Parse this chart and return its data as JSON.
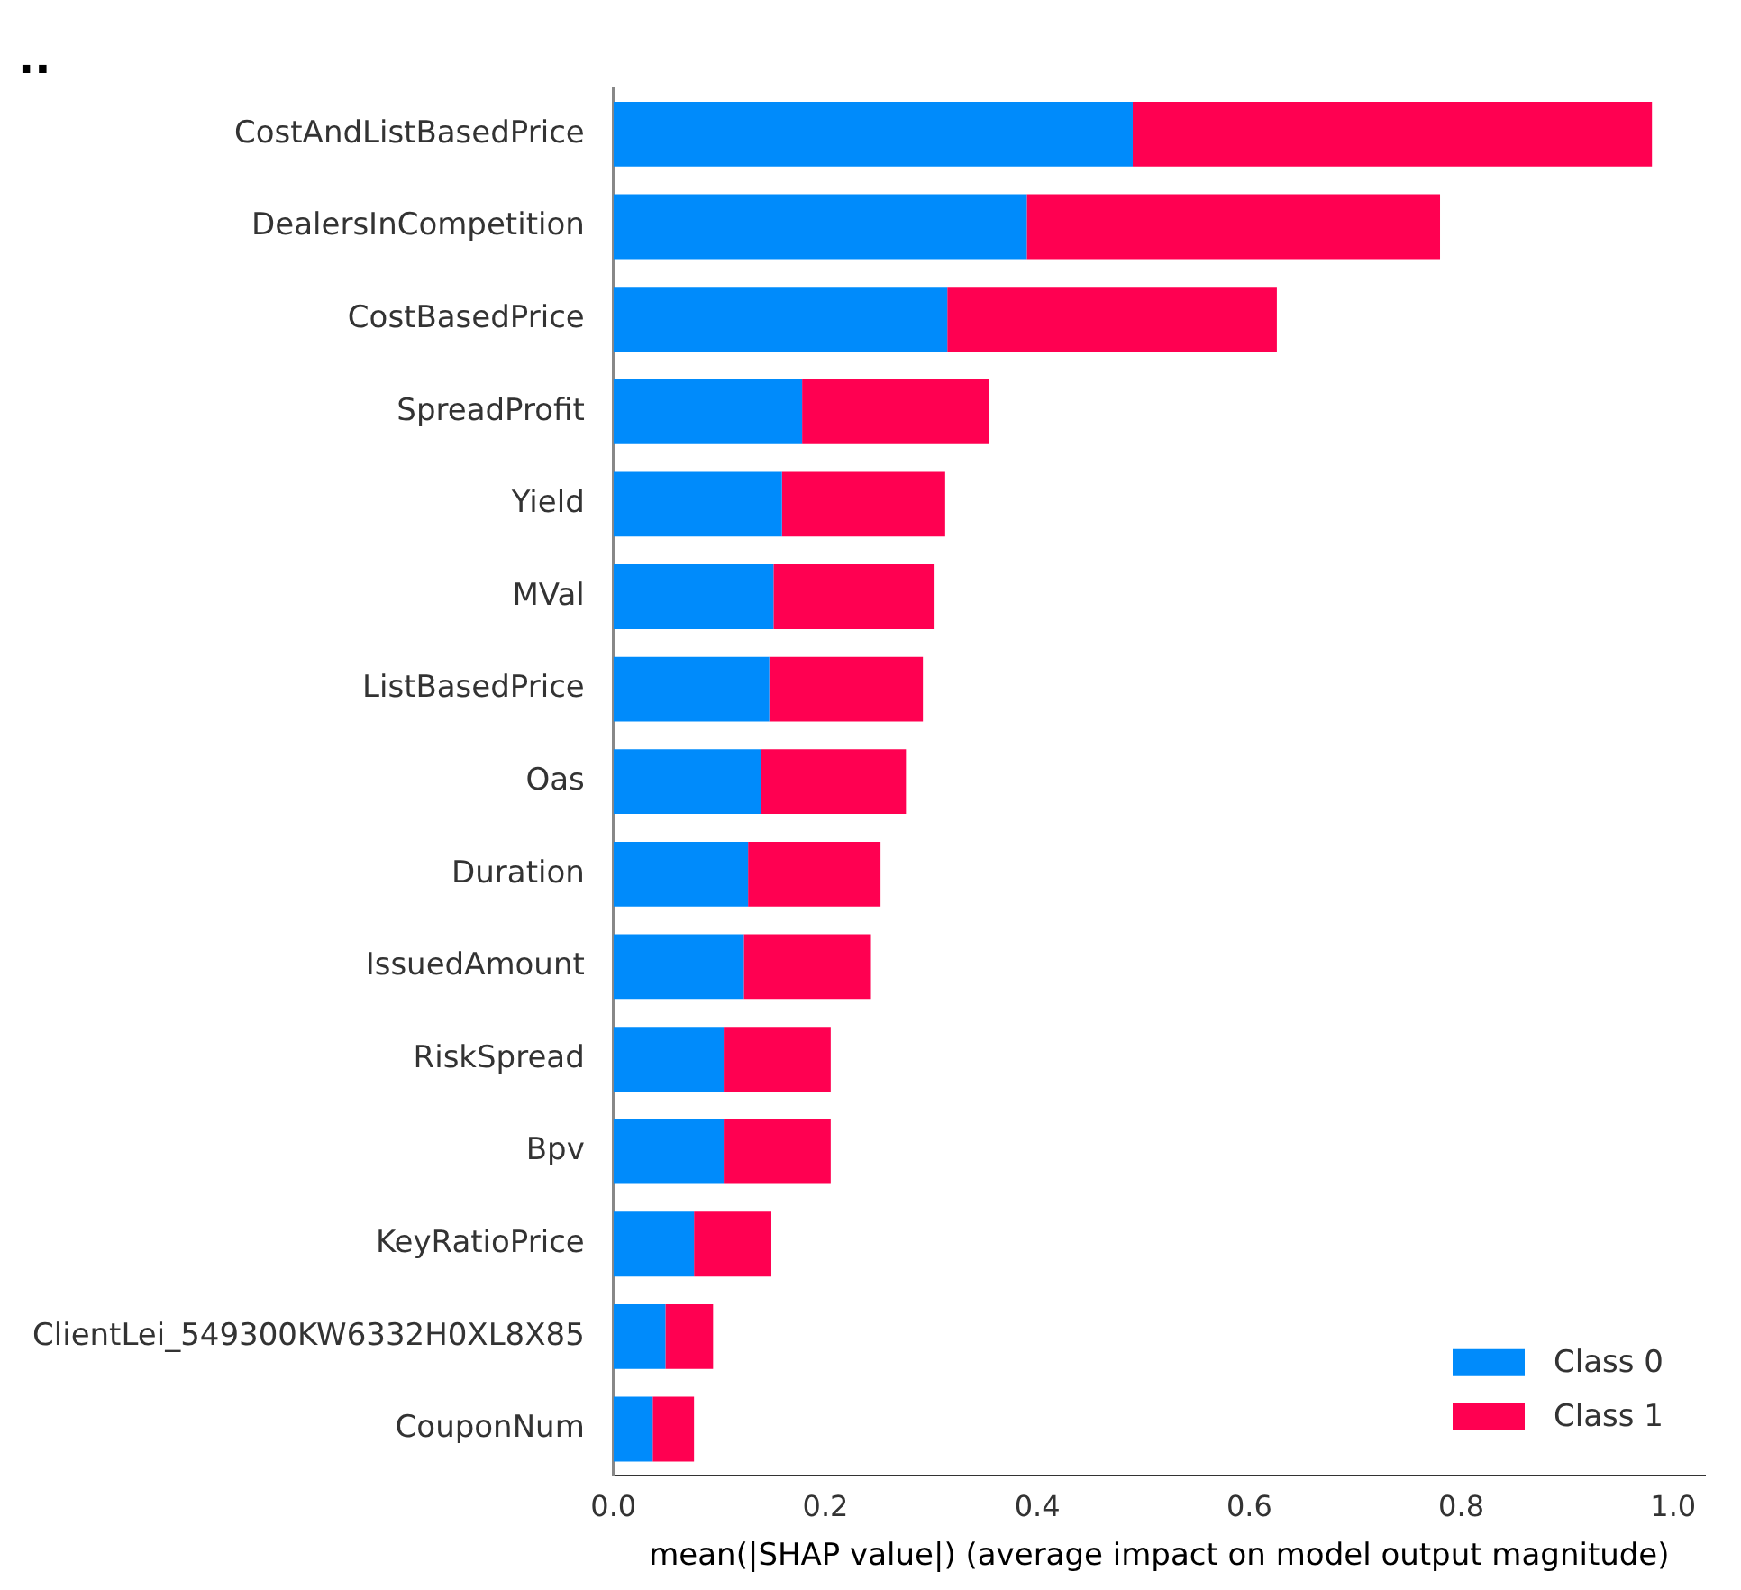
{
  "chart_data": {
    "type": "bar",
    "orientation": "horizontal",
    "stacked": true,
    "title": "..",
    "xlabel": "mean(|SHAP value|) (average impact on model output magnitude)",
    "categories": [
      "CostAndListBasedPrice",
      "DealersInCompetition",
      "CostBasedPrice",
      "SpreadProfit",
      "Yield",
      "MVal",
      "ListBasedPrice",
      "Oas",
      "Duration",
      "IssuedAmount",
      "RiskSpread",
      "Bpv",
      "KeyRatioPrice",
      "ClientLei_549300KW6332H0XL8X85",
      "CouponNum"
    ],
    "series": [
      {
        "name": "Class 0",
        "color": "#008bfb",
        "values": [
          0.49,
          0.39,
          0.315,
          0.178,
          0.159,
          0.151,
          0.147,
          0.139,
          0.127,
          0.123,
          0.104,
          0.104,
          0.076,
          0.049,
          0.037
        ]
      },
      {
        "name": "Class 1",
        "color": "#ff0051",
        "values": [
          0.49,
          0.39,
          0.311,
          0.176,
          0.154,
          0.152,
          0.145,
          0.137,
          0.125,
          0.12,
          0.101,
          0.101,
          0.073,
          0.045,
          0.039
        ]
      }
    ],
    "xlim": [
      0,
      1.03
    ],
    "xticks": [
      {
        "value": 0,
        "label": "0.0"
      },
      {
        "value": 0.2,
        "label": "0.2"
      },
      {
        "value": 0.4,
        "label": "0.4"
      },
      {
        "value": 0.6,
        "label": "0.6"
      },
      {
        "value": 0.8,
        "label": "0.8"
      },
      {
        "value": 1,
        "label": "1.0"
      }
    ],
    "grid": false,
    "legend": "bottom right"
  }
}
